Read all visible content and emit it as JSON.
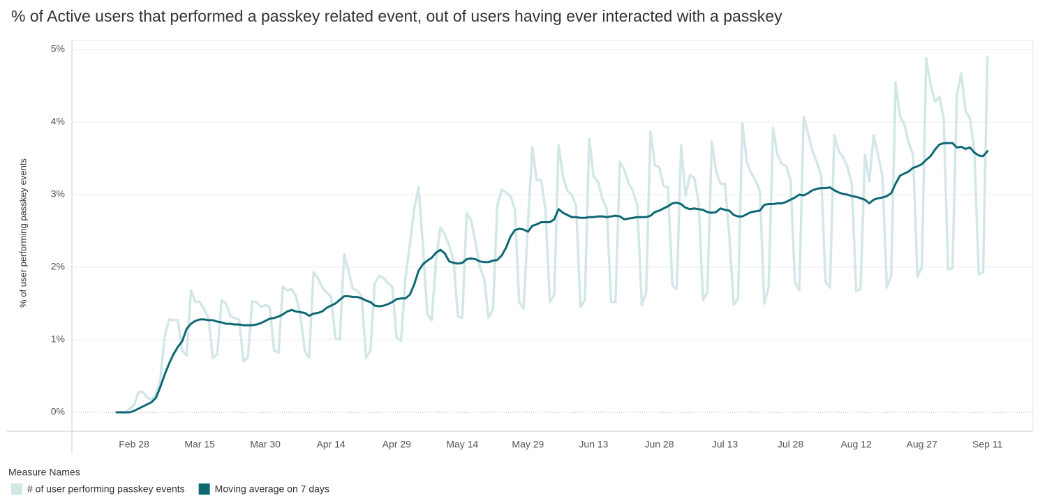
{
  "chart_data": {
    "type": "line",
    "title": "% of Active users that performed a passkey related event, out of users having ever interacted with a passkey",
    "y_label": "% of user performing passkey events",
    "legend_title": "Measure Names",
    "categories": [
      null,
      null,
      null,
      null,
      "Feb 28",
      null,
      null,
      null,
      null,
      null,
      null,
      null,
      null,
      null,
      null,
      null,
      null,
      null,
      null,
      "Mar 15",
      null,
      null,
      null,
      null,
      null,
      null,
      null,
      null,
      null,
      null,
      null,
      null,
      null,
      null,
      "Mar 30",
      null,
      null,
      null,
      null,
      null,
      null,
      null,
      null,
      null,
      null,
      null,
      null,
      null,
      null,
      "Apr 14",
      null,
      null,
      null,
      null,
      null,
      null,
      null,
      null,
      null,
      null,
      null,
      null,
      null,
      null,
      "Apr 29",
      null,
      null,
      null,
      null,
      null,
      null,
      null,
      null,
      null,
      null,
      null,
      null,
      null,
      null,
      "May 14",
      null,
      null,
      null,
      null,
      null,
      null,
      null,
      null,
      null,
      null,
      null,
      null,
      null,
      null,
      "May 29",
      null,
      null,
      null,
      null,
      null,
      null,
      null,
      null,
      null,
      null,
      null,
      null,
      null,
      null,
      "Jun 13",
      null,
      null,
      null,
      null,
      null,
      null,
      null,
      null,
      null,
      null,
      null,
      null,
      null,
      null,
      "Jun 28",
      null,
      null,
      null,
      null,
      null,
      null,
      null,
      null,
      null,
      null,
      null,
      null,
      null,
      null,
      "Jul 13",
      null,
      null,
      null,
      null,
      null,
      null,
      null,
      null,
      null,
      null,
      null,
      null,
      null,
      null,
      "Jul 28",
      null,
      null,
      null,
      null,
      null,
      null,
      null,
      null,
      null,
      null,
      null,
      null,
      null,
      null,
      "Aug 12",
      null,
      null,
      null,
      null,
      null,
      null,
      null,
      null,
      null,
      null,
      null,
      null,
      null,
      null,
      "Aug 27",
      null,
      null,
      null,
      null,
      null,
      null,
      null,
      null,
      null,
      null,
      null,
      null,
      null,
      null,
      "Sep 11"
    ],
    "series": [
      {
        "name": "# of user performing passkey events",
        "color": "#d3e7e8",
        "width": 3.5,
        "values": [
          0,
          0,
          0,
          0.05,
          0.1,
          0.28,
          0.28,
          0.2,
          0.18,
          0.25,
          0.45,
          1.05,
          1.28,
          1.27,
          1.27,
          0.85,
          0.78,
          1.68,
          1.52,
          1.52,
          1.42,
          1.3,
          0.75,
          0.8,
          1.55,
          1.5,
          1.32,
          1.3,
          1.28,
          0.7,
          0.76,
          1.53,
          1.52,
          1.45,
          1.48,
          1.45,
          0.85,
          0.82,
          1.73,
          1.68,
          1.7,
          1.6,
          1.35,
          0.85,
          0.75,
          1.93,
          1.85,
          1.72,
          1.65,
          1.6,
          1.02,
          1.0,
          2.18,
          1.95,
          1.7,
          1.68,
          1.6,
          0.75,
          0.85,
          1.78,
          1.88,
          1.85,
          1.78,
          1.73,
          1.03,
          0.98,
          1.85,
          2.3,
          2.8,
          3.1,
          2.3,
          1.35,
          1.27,
          2.1,
          2.55,
          2.45,
          2.3,
          2.1,
          1.32,
          1.3,
          2.75,
          2.65,
          2.35,
          2.0,
          1.85,
          1.3,
          1.42,
          2.85,
          3.07,
          3.03,
          2.98,
          2.8,
          1.52,
          1.43,
          2.6,
          3.65,
          3.2,
          3.2,
          2.8,
          1.52,
          1.62,
          3.68,
          3.25,
          3.05,
          3.0,
          2.85,
          1.45,
          1.55,
          3.77,
          3.25,
          3.18,
          2.95,
          2.8,
          1.52,
          1.52,
          3.45,
          3.35,
          3.15,
          3.05,
          2.85,
          1.48,
          1.65,
          3.87,
          3.4,
          3.38,
          3.12,
          3.1,
          1.75,
          1.7,
          3.68,
          2.98,
          3.27,
          3.23,
          2.9,
          1.55,
          1.65,
          3.73,
          3.32,
          3.15,
          3.15,
          2.45,
          1.48,
          1.57,
          3.98,
          3.45,
          3.3,
          3.2,
          3.05,
          1.5,
          1.73,
          3.92,
          3.55,
          3.42,
          3.4,
          3.2,
          1.8,
          1.68,
          4.07,
          3.85,
          3.6,
          3.45,
          3.27,
          1.8,
          1.72,
          3.82,
          3.6,
          3.52,
          3.38,
          3.15,
          1.67,
          1.7,
          3.55,
          3.18,
          3.82,
          3.55,
          3.25,
          1.72,
          1.88,
          4.55,
          4.08,
          3.97,
          3.72,
          3.55,
          1.87,
          2.0,
          4.88,
          4.52,
          4.28,
          4.35,
          4.05,
          1.97,
          1.98,
          4.38,
          4.67,
          4.15,
          4.05,
          3.6,
          1.9,
          1.93,
          4.9
        ]
      },
      {
        "name": "Moving average on 7 days",
        "color": "#0e6874",
        "width": 3,
        "values": [
          0,
          0,
          0,
          0,
          0.02,
          0.05,
          0.08,
          0.11,
          0.14,
          0.2,
          0.35,
          0.52,
          0.67,
          0.8,
          0.9,
          0.98,
          1.15,
          1.22,
          1.26,
          1.28,
          1.28,
          1.27,
          1.27,
          1.25,
          1.24,
          1.22,
          1.22,
          1.21,
          1.21,
          1.2,
          1.2,
          1.2,
          1.21,
          1.23,
          1.26,
          1.29,
          1.3,
          1.32,
          1.35,
          1.39,
          1.41,
          1.39,
          1.38,
          1.37,
          1.33,
          1.36,
          1.37,
          1.39,
          1.44,
          1.47,
          1.5,
          1.55,
          1.6,
          1.6,
          1.59,
          1.59,
          1.57,
          1.54,
          1.52,
          1.47,
          1.46,
          1.47,
          1.49,
          1.52,
          1.56,
          1.57,
          1.57,
          1.62,
          1.76,
          1.95,
          2.04,
          2.09,
          2.13,
          2.2,
          2.24,
          2.19,
          2.08,
          2.06,
          2.05,
          2.06,
          2.11,
          2.12,
          2.11,
          2.08,
          2.07,
          2.07,
          2.09,
          2.1,
          2.16,
          2.27,
          2.42,
          2.51,
          2.53,
          2.52,
          2.49,
          2.57,
          2.59,
          2.62,
          2.62,
          2.62,
          2.66,
          2.8,
          2.75,
          2.72,
          2.69,
          2.69,
          2.68,
          2.68,
          2.69,
          2.69,
          2.7,
          2.7,
          2.69,
          2.7,
          2.71,
          2.7,
          2.66,
          2.67,
          2.68,
          2.69,
          2.69,
          2.69,
          2.71,
          2.76,
          2.78,
          2.81,
          2.84,
          2.88,
          2.89,
          2.87,
          2.82,
          2.8,
          2.81,
          2.8,
          2.79,
          2.76,
          2.75,
          2.76,
          2.81,
          2.79,
          2.78,
          2.72,
          2.7,
          2.7,
          2.73,
          2.76,
          2.77,
          2.78,
          2.86,
          2.87,
          2.87,
          2.88,
          2.88,
          2.9,
          2.93,
          2.96,
          3.0,
          2.99,
          3.02,
          3.06,
          3.08,
          3.09,
          3.09,
          3.1,
          3.06,
          3.03,
          3.01,
          3.0,
          2.98,
          2.97,
          2.95,
          2.93,
          2.88,
          2.93,
          2.95,
          2.96,
          2.98,
          3.02,
          3.15,
          3.26,
          3.29,
          3.32,
          3.37,
          3.39,
          3.42,
          3.48,
          3.53,
          3.62,
          3.69,
          3.71,
          3.71,
          3.71,
          3.65,
          3.66,
          3.63,
          3.65,
          3.58,
          3.54,
          3.53,
          3.6
        ]
      }
    ],
    "ylim": [
      0,
      5
    ],
    "yticks": [
      {
        "value": 0,
        "label": "0%"
      },
      {
        "value": 1,
        "label": "1%"
      },
      {
        "value": 2,
        "label": "2%"
      },
      {
        "value": 3,
        "label": "3%"
      },
      {
        "value": 4,
        "label": "4%"
      },
      {
        "value": 5,
        "label": "5%"
      }
    ],
    "grid": true
  }
}
